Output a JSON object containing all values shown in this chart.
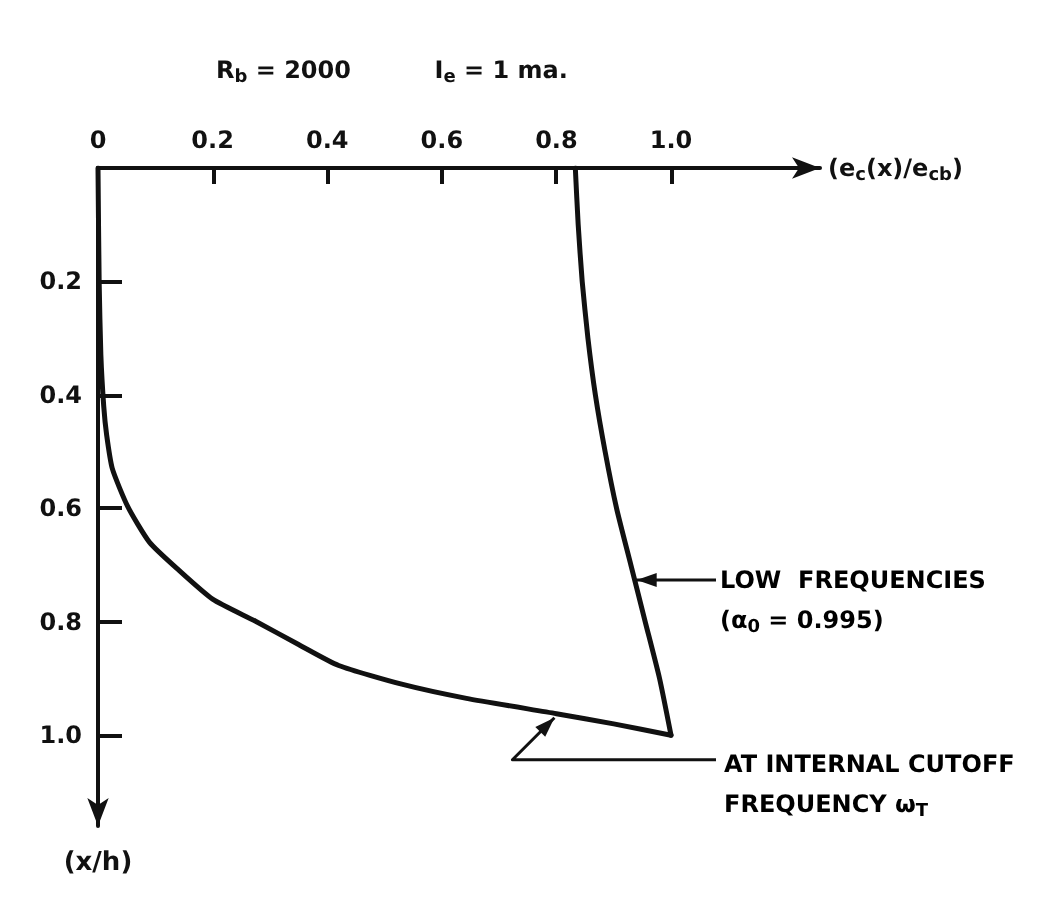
{
  "chart_data": {
    "type": "line",
    "title": "R$_{b}$ = 2000          I$_{e}$ = 1 ma.",
    "xlabel": "(e$_{c}$(x)/e$_{cb}$)",
    "ylabel": "(x/h)",
    "xlim": [
      0,
      1.26
    ],
    "ylim": [
      1.16,
      0
    ],
    "xticks": [
      0,
      0.2,
      0.4,
      0.6,
      0.8,
      {
        "value": 1,
        "label": "1.0"
      }
    ],
    "yticks": [
      0.2,
      0.4,
      0.6,
      0.8,
      {
        "value": 1,
        "label": "1.0"
      }
    ],
    "grid": false,
    "marker": "none",
    "line_style": "solid",
    "series": [
      {
        "color": "#111111",
        "x": [
          0.833,
          0.838,
          0.845,
          0.855,
          0.868,
          0.885,
          0.905,
          0.93,
          0.955,
          0.98,
          1.0
        ],
        "values": [
          0,
          0.1,
          0.2,
          0.3,
          0.4,
          0.5,
          0.6,
          0.7,
          0.8,
          0.9,
          1.0
        ]
      },
      {
        "color": "#111111",
        "x": [
          0,
          0.002,
          0.005,
          0.01,
          0.015,
          0.025,
          0.052,
          0.09,
          0.141,
          0.2,
          0.275,
          0.35,
          0.42,
          0.53,
          0.643,
          0.8,
          0.9,
          1.0
        ],
        "values": [
          0,
          0.2,
          0.33,
          0.42,
          0.47,
          0.53,
          0.597,
          0.66,
          0.709,
          0.76,
          0.799,
          0.84,
          0.877,
          0.91,
          0.935,
          0.962,
          0.98,
          1.0
        ]
      }
    ],
    "annotations": [
      "LOW  FREQUENCIES\n(α$_{0}$ = 0.995)",
      {
        "text": "AT INTERNAL CUTOFF\nFREQUENCY ω$_{T}$",
        "x": 0.8,
        "y": 0.962
      }
    ]
  }
}
